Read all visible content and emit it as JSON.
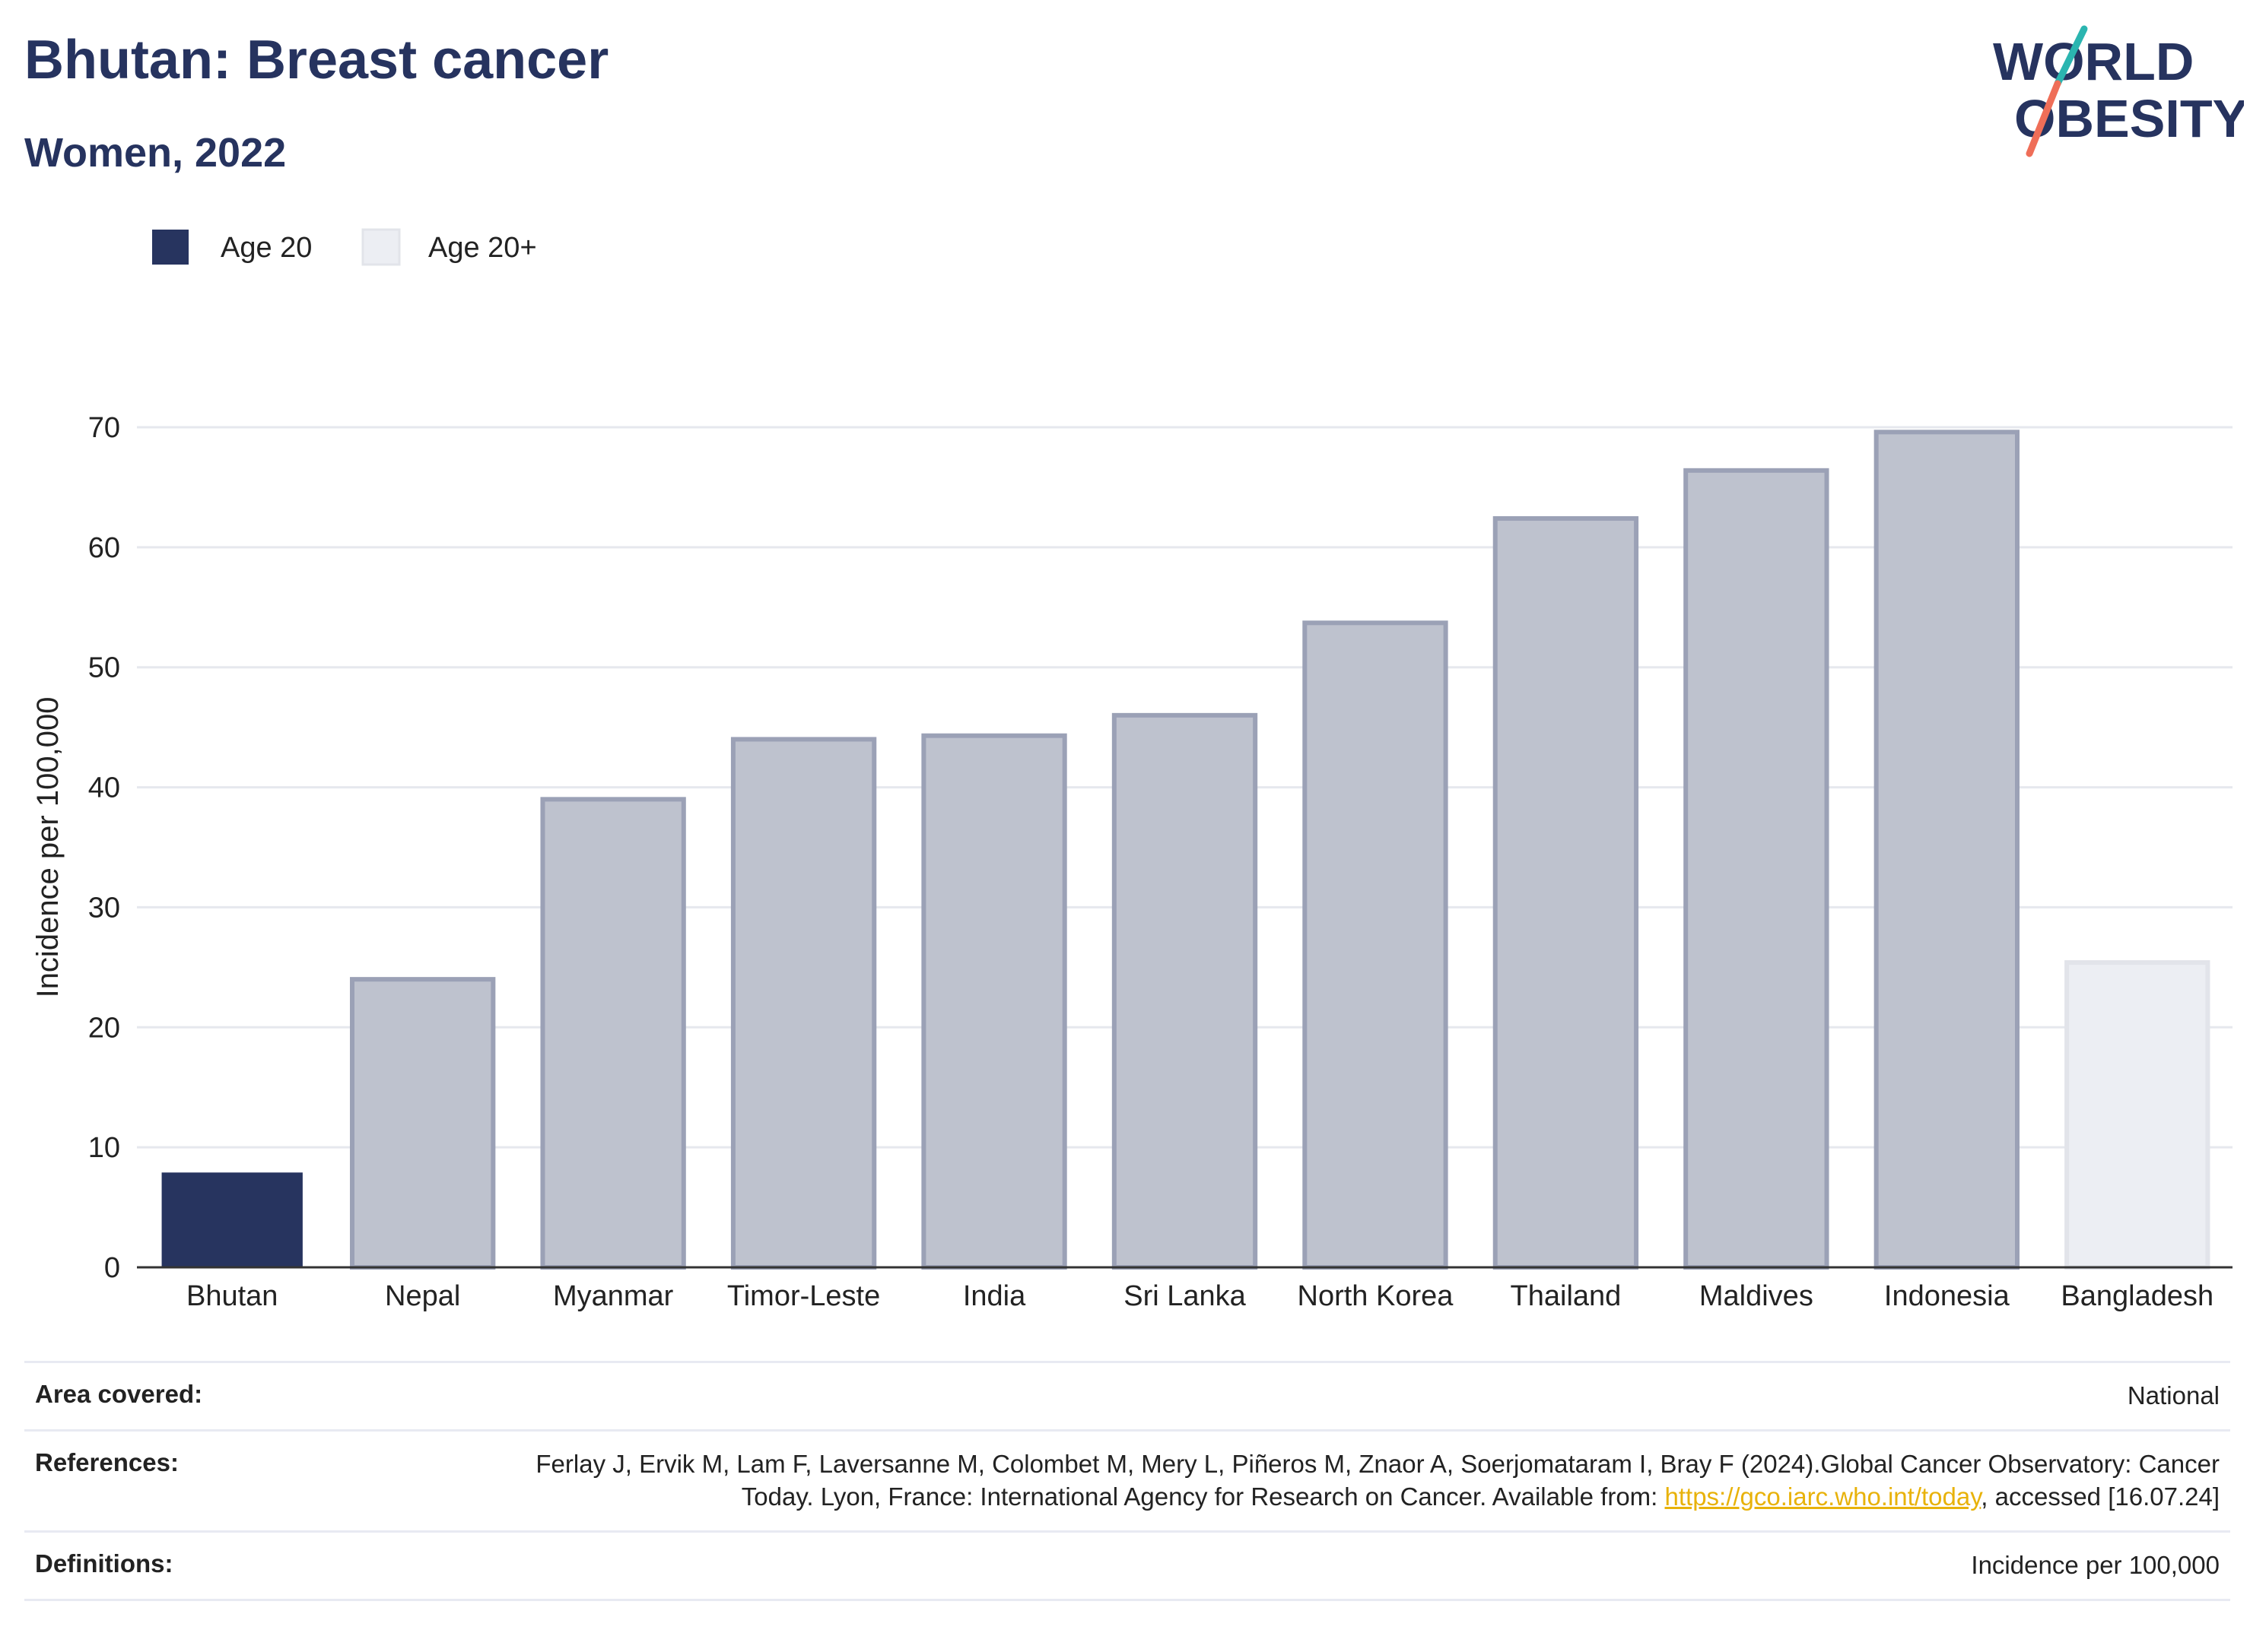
{
  "header": {
    "title": "Bhutan: Breast cancer",
    "subtitle": "Women, 2022",
    "logo_line1": "WORLD",
    "logo_line2": "OBESITY"
  },
  "legend": [
    {
      "label": "Age 20",
      "color": "#27345f"
    },
    {
      "label": "Age 20+",
      "color": "#eceef3"
    }
  ],
  "chart_data": {
    "type": "bar",
    "categories": [
      "Bhutan",
      "Nepal",
      "Myanmar",
      "Timor-Leste",
      "India",
      "Sri Lanka",
      "North Korea",
      "Thailand",
      "Maldives",
      "Indonesia",
      "Bangladesh"
    ],
    "values": [
      7.9,
      24.0,
      39.0,
      44.0,
      44.3,
      46.0,
      53.7,
      62.4,
      66.4,
      69.6,
      25.4
    ],
    "bar_styles": [
      "highlight",
      "comparison",
      "comparison",
      "comparison",
      "comparison",
      "comparison",
      "comparison",
      "comparison",
      "comparison",
      "comparison",
      "age20plus"
    ],
    "colors": {
      "highlight": "#27345f",
      "comparison": "#bec2ce",
      "comparison_stroke": "#9ba1b6",
      "age20plus": "#eceef3",
      "age20plus_stroke": "#e2e4ea"
    },
    "ylabel": "Incidence per 100,000",
    "ylim": [
      0,
      70
    ],
    "yticks": [
      0,
      10,
      20,
      30,
      40,
      50,
      60,
      70
    ],
    "grid": true,
    "legend_position": "top-left"
  },
  "info": {
    "area_label": "Area covered:",
    "area_value": "National",
    "references_label": "References:",
    "references_text": "Ferlay J, Ervik M, Lam F, Laversanne M, Colombet M, Mery L, Piñeros M, Znaor A, Soerjomataram I, Bray F (2024).Global Cancer Observatory: Cancer Today. Lyon, France: International Agency for Research on Cancer. Available from: ",
    "references_link": "https://gco.iarc.who.int/today",
    "references_suffix": ", accessed [16.07.24]",
    "definitions_label": "Definitions:",
    "definitions_value": "Incidence per 100,000"
  }
}
